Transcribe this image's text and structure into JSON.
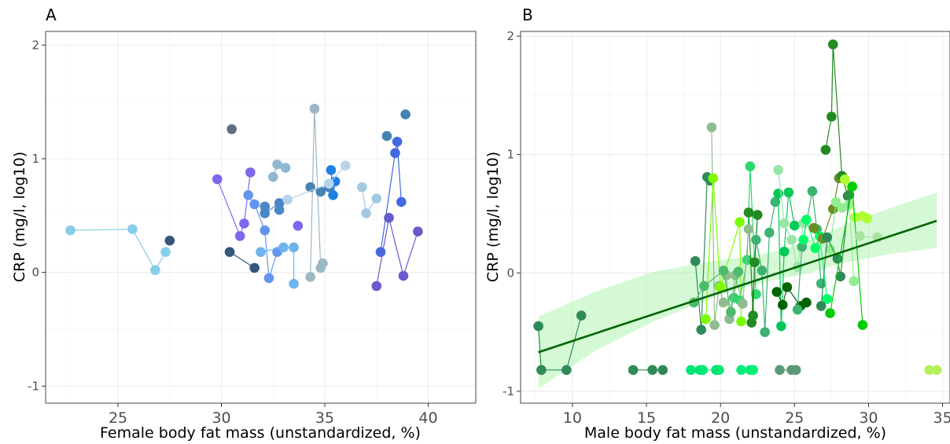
{
  "chart_data": [
    {
      "type": "scatter",
      "panel_label": "A",
      "xlabel": "Female body fat mass (unstandardized, %)",
      "ylabel": "CRP (mg/l, log10)",
      "xlim": [
        21.5,
        42.3
      ],
      "ylim": [
        -1.15,
        2.12
      ],
      "xticks": [
        25,
        30,
        35,
        40
      ],
      "yticks": [
        -1,
        0,
        1,
        2
      ],
      "grid": true,
      "legend": "none",
      "subjects": [
        {
          "color": "#87ceeb",
          "points": [
            [
              22.7,
              0.37
            ],
            [
              25.7,
              0.38
            ],
            [
              26.8,
              0.02
            ],
            [
              27.3,
              0.18
            ]
          ]
        },
        {
          "color": "#34567a",
          "points": [
            [
              27.5,
              0.28
            ]
          ]
        },
        {
          "color": "#5f6d80",
          "points": [
            [
              30.5,
              1.26
            ]
          ]
        },
        {
          "color": "#34567a",
          "points": [
            [
              30.4,
              0.18
            ],
            [
              31.6,
              0.04
            ]
          ]
        },
        {
          "color": "#7b68ee",
          "points": [
            [
              29.8,
              0.82
            ],
            [
              30.9,
              0.32
            ],
            [
              31.1,
              0.43
            ],
            [
              31.4,
              0.88
            ]
          ]
        },
        {
          "color": "#6495ed",
          "points": [
            [
              31.3,
              0.68
            ],
            [
              31.6,
              0.6
            ],
            [
              32.1,
              0.37
            ],
            [
              32.3,
              -0.05
            ],
            [
              32.7,
              0.18
            ]
          ]
        },
        {
          "color": "#4a86c8",
          "points": [
            [
              32.1,
              0.58
            ],
            [
              32.1,
              0.52
            ],
            [
              32.8,
              0.61
            ],
            [
              32.8,
              0.55
            ]
          ]
        },
        {
          "color": "#8fb8d0",
          "points": [
            [
              32.5,
              0.84
            ],
            [
              32.7,
              0.95
            ],
            [
              33.1,
              0.92
            ]
          ]
        },
        {
          "color": "#6cb4ee",
          "points": [
            [
              31.9,
              0.18
            ],
            [
              33.0,
              0.22
            ],
            [
              33.5,
              0.22
            ],
            [
              33.5,
              -0.1
            ]
          ]
        },
        {
          "color": "#7b68ee",
          "points": [
            [
              33.7,
              0.41
            ]
          ]
        },
        {
          "color": "#9cb8c4",
          "points": [
            [
              34.3,
              -0.04
            ],
            [
              34.5,
              1.44
            ],
            [
              34.8,
              0.04
            ],
            [
              34.9,
              0.08
            ]
          ]
        },
        {
          "color": "#4682b4",
          "points": [
            [
              34.3,
              0.75
            ],
            [
              34.8,
              0.71
            ],
            [
              35.2,
              0.75
            ]
          ]
        },
        {
          "color": "#1e80e6",
          "points": [
            [
              35.3,
              0.9
            ],
            [
              35.4,
              0.68
            ],
            [
              35.5,
              0.8
            ]
          ]
        },
        {
          "color": "#b5d3ea",
          "points": [
            [
              33.2,
              0.64
            ],
            [
              35.2,
              0.78
            ],
            [
              36.0,
              0.94
            ]
          ]
        },
        {
          "color": "#a3c9e2",
          "points": [
            [
              36.8,
              0.75
            ],
            [
              37.0,
              0.52
            ],
            [
              37.5,
              0.65
            ]
          ]
        },
        {
          "color": "#4169e1",
          "points": [
            [
              37.7,
              0.18
            ],
            [
              38.4,
              1.05
            ],
            [
              38.5,
              1.15
            ],
            [
              38.7,
              0.62
            ]
          ]
        },
        {
          "color": "#4682b4",
          "points": [
            [
              38.0,
              1.2
            ]
          ]
        },
        {
          "color": "#4682b4",
          "points": [
            [
              38.9,
              1.39
            ]
          ]
        },
        {
          "color": "#6a5acd",
          "points": [
            [
              37.5,
              -0.12
            ],
            [
              38.1,
              0.48
            ],
            [
              38.8,
              -0.03
            ],
            [
              39.5,
              0.36
            ]
          ]
        }
      ]
    },
    {
      "type": "scatter",
      "panel_label": "B",
      "xlabel": "Male body fat mass (unstandardized, %)",
      "ylabel": "CRP (mg/l, log10)",
      "xlim": [
        6.5,
        35.5
      ],
      "ylim": [
        -1.1,
        2.04
      ],
      "xticks": [
        10,
        15,
        20,
        25,
        30,
        35
      ],
      "yticks": [
        -1,
        0,
        1,
        2
      ],
      "grid": true,
      "legend": "none",
      "trend": {
        "x": [
          7.7,
          34.6
        ],
        "y": [
          -0.67,
          0.44
        ]
      },
      "ribbon": {
        "x": [
          7.7,
          11.5,
          15.5,
          19.5,
          22.0,
          24.0,
          26.0,
          28.5,
          31.5,
          34.6
        ],
        "upper": [
          -0.37,
          -0.16,
          0.01,
          0.1,
          0.14,
          0.19,
          0.28,
          0.41,
          0.55,
          0.68
        ],
        "lower": [
          -0.98,
          -0.66,
          -0.41,
          -0.21,
          -0.11,
          -0.05,
          0.0,
          0.09,
          0.16,
          0.21
        ]
      },
      "subjects": [
        {
          "color": "#2e8b57",
          "points": [
            [
              7.7,
              -0.45
            ],
            [
              7.9,
              -0.82
            ],
            [
              9.6,
              -0.82
            ],
            [
              10.6,
              -0.36
            ]
          ]
        },
        {
          "color": "#2e8b57",
          "points": [
            [
              14.1,
              -0.82
            ],
            [
              15.4,
              -0.82
            ],
            [
              16.1,
              -0.82
            ]
          ]
        },
        {
          "color": "#00e676",
          "points": [
            [
              18.0,
              -0.82
            ],
            [
              18.6,
              -0.82
            ],
            [
              18.8,
              -0.82
            ],
            [
              19.7,
              -0.82
            ],
            [
              19.9,
              -0.82
            ]
          ]
        },
        {
          "color": "#00ee76",
          "points": [
            [
              21.4,
              -0.82
            ],
            [
              22.0,
              -0.82
            ],
            [
              22.2,
              -0.82
            ]
          ]
        },
        {
          "color": "#5b9a76",
          "points": [
            [
              24.8,
              -0.82
            ],
            [
              25.1,
              -0.82
            ],
            [
              24.0,
              -0.82
            ]
          ]
        },
        {
          "color": "#b3f05a",
          "points": [
            [
              34.1,
              -0.82
            ],
            [
              34.6,
              -0.82
            ]
          ]
        },
        {
          "color": "#2e8b57",
          "points": [
            [
              18.3,
              0.1
            ],
            [
              18.7,
              -0.48
            ],
            [
              19.1,
              0.81
            ],
            [
              19.3,
              0.78
            ]
          ]
        },
        {
          "color": "#8fbc8f",
          "points": [
            [
              19.4,
              1.23
            ],
            [
              19.6,
              -0.44
            ],
            [
              19.9,
              -0.11
            ],
            [
              20.2,
              -0.25
            ]
          ]
        },
        {
          "color": "#7cfc00",
          "points": [
            [
              19.0,
              -0.39
            ],
            [
              19.5,
              0.8
            ],
            [
              20.0,
              -0.12
            ],
            [
              21.3,
              0.43
            ],
            [
              21.4,
              -0.41
            ]
          ]
        },
        {
          "color": "#2ad96b",
          "points": [
            [
              20.9,
              -0.21
            ],
            [
              21.3,
              -0.23
            ],
            [
              21.8,
              0.11
            ],
            [
              22.0,
              0.9
            ],
            [
              22.4,
              -0.18
            ]
          ]
        },
        {
          "color": "#228b22",
          "points": [
            [
              21.9,
              0.51
            ],
            [
              22.2,
              -0.36
            ],
            [
              22.3,
              0.09
            ],
            [
              22.5,
              0.49
            ],
            [
              22.1,
              -0.42
            ]
          ]
        },
        {
          "color": "#8fbc8f",
          "points": [
            [
              20.4,
              -0.02
            ],
            [
              20.6,
              -0.39
            ],
            [
              21.0,
              -0.02
            ],
            [
              21.5,
              -0.26
            ],
            [
              21.9,
              0.37
            ]
          ]
        },
        {
          "color": "#3cb371",
          "points": [
            [
              22.4,
              0.28
            ],
            [
              22.8,
              0.02
            ],
            [
              23.0,
              -0.5
            ],
            [
              23.3,
              0.34
            ],
            [
              23.7,
              0.6
            ]
          ]
        },
        {
          "color": "#00c957",
          "points": [
            [
              23.9,
              0.67
            ],
            [
              24.1,
              -0.45
            ],
            [
              24.3,
              0.18
            ],
            [
              24.6,
              0.68
            ],
            [
              25.0,
              0.4
            ]
          ]
        },
        {
          "color": "#006400",
          "points": [
            [
              23.8,
              -0.16
            ],
            [
              24.2,
              -0.27
            ],
            [
              24.5,
              -0.12
            ],
            [
              25.4,
              -0.28
            ],
            [
              25.8,
              -0.25
            ]
          ]
        },
        {
          "color": "#98e6a6",
          "points": [
            [
              23.9,
              0.87
            ],
            [
              24.3,
              0.42
            ],
            [
              24.8,
              0.28
            ],
            [
              25.2,
              0.05
            ],
            [
              25.6,
              0.42
            ]
          ]
        },
        {
          "color": "#3cb371",
          "points": [
            [
              25.2,
              -0.31
            ],
            [
              25.5,
              0.22
            ],
            [
              26.2,
              0.69
            ],
            [
              26.5,
              0.37
            ],
            [
              26.8,
              -0.09
            ]
          ]
        },
        {
          "color": "#00ff66",
          "points": [
            [
              25.6,
              0.28
            ],
            [
              25.8,
              0.45
            ],
            [
              26.4,
              0.21
            ],
            [
              26.7,
              0.31
            ],
            [
              27.2,
              -0.22
            ]
          ]
        },
        {
          "color": "#6b8e23",
          "points": [
            [
              26.3,
              0.38
            ],
            [
              26.9,
              0.29
            ],
            [
              27.6,
              0.54
            ],
            [
              28.0,
              0.8
            ]
          ]
        },
        {
          "color": "#228b22",
          "points": [
            [
              27.1,
              1.04
            ],
            [
              27.5,
              1.32
            ],
            [
              27.6,
              1.93
            ],
            [
              28.2,
              0.82
            ],
            [
              28.6,
              0.65
            ]
          ]
        },
        {
          "color": "#90ee90",
          "points": [
            [
              27.4,
              0.2
            ],
            [
              27.8,
              0.6
            ],
            [
              28.2,
              0.55
            ],
            [
              28.7,
              0.58
            ],
            [
              29.0,
              -0.07
            ]
          ]
        },
        {
          "color": "#adff2f",
          "points": [
            [
              28.4,
              0.79
            ],
            [
              29.1,
              0.47
            ],
            [
              29.6,
              0.48
            ],
            [
              29.9,
              0.46
            ]
          ]
        },
        {
          "color": "#2e8b57",
          "points": [
            [
              26.8,
              -0.28
            ],
            [
              27.2,
              0.3
            ],
            [
              27.9,
              0.12
            ],
            [
              28.1,
              -0.03
            ],
            [
              28.7,
              0.66
            ]
          ]
        },
        {
          "color": "#00cd00",
          "points": [
            [
              27.4,
              -0.34
            ],
            [
              28.9,
              0.73
            ],
            [
              29.6,
              -0.44
            ]
          ]
        },
        {
          "color": "#a8e4a0",
          "points": [
            [
              29.4,
              0.31
            ],
            [
              30.6,
              0.3
            ]
          ]
        },
        {
          "color": "#4cbb6c",
          "points": [
            [
              18.2,
              -0.25
            ],
            [
              18.9,
              -0.11
            ],
            [
              20.2,
              0.02
            ],
            [
              20.7,
              -0.33
            ],
            [
              21.2,
              0.01
            ]
          ]
        }
      ]
    }
  ]
}
